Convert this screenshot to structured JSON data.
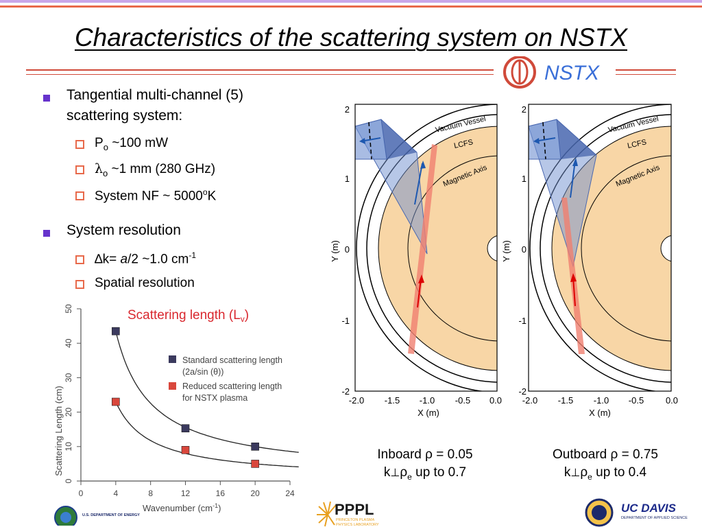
{
  "slide": {
    "title": "Characteristics of the scattering system on NSTX",
    "logo_text": "NSTX"
  },
  "bullets": {
    "b1_line1": "Tangential multi-channel (5)",
    "b1_line2": "scattering system:",
    "b1_sub1_main": "P",
    "b1_sub1_sub": "o",
    "b1_sub1_rest": " ~100 mW",
    "b1_sub2_main": "λ",
    "b1_sub2_sub": "o",
    "b1_sub2_rest": " ~1 mm (280 GHz)",
    "b1_sub3_main": "System NF ~ 5000",
    "b1_sub3_sup": "o",
    "b1_sub3_rest": "K",
    "b2": "System resolution",
    "b2_sub1_a": "∆k= ",
    "b2_sub1_b": "a",
    "b2_sub1_c": "/2 ~1.0 cm",
    "b2_sub1_sup": "-1",
    "b2_sub2": "Spatial resolution"
  },
  "chart_data": {
    "type": "scatter",
    "title": "Scattering length (L",
    "title_sub": "v",
    "title_end": ")",
    "xlabel": "Wavenumber (cm",
    "xlabel_sup": "-1",
    "xlabel_end": ")",
    "ylabel": "Scattering Length (cm)",
    "xlim": [
      0,
      24
    ],
    "ylim": [
      0,
      50
    ],
    "xticks": [
      "0",
      "4",
      "8",
      "12",
      "16",
      "20",
      "24"
    ],
    "yticks": [
      "0",
      "10",
      "20",
      "30",
      "40",
      "50"
    ],
    "series": [
      {
        "name": "Standard scattering length",
        "name2": "(2a/sin (θ))",
        "color": "#3b3a5e",
        "x": [
          4,
          12,
          20
        ],
        "y": [
          43.5,
          15.3,
          10.0
        ]
      },
      {
        "name": "Reduced scattering length",
        "name2": "for NSTX plasma",
        "color": "#d9473c",
        "x": [
          4,
          12,
          20
        ],
        "y": [
          23.0,
          9.0,
          5.0
        ]
      }
    ]
  },
  "panels": {
    "ylabel": "Y (m)",
    "xlabel": "X (m)",
    "xticks": [
      "-2.0",
      "-1.5",
      "-1.0",
      "-0.5",
      "0.0"
    ],
    "yticks": [
      "2",
      "1",
      "0",
      "-1",
      "-2"
    ],
    "label_vessel": "Vacuum Vessel",
    "label_lcfs": "LCFS",
    "label_axis": "Magnetic Axis"
  },
  "captions": {
    "inboard_line1": "Inboard  ρ = 0.05",
    "inboard_k": "k",
    "inboard_perp": "⊥",
    "inboard_rho": "ρ",
    "inboard_e": "e",
    "inboard_rest": " up to 0.7",
    "outboard_line1": "Outboard  ρ = 0.75",
    "outboard_k": "k",
    "outboard_perp": "⊥",
    "outboard_rho": "ρ",
    "outboard_e": "e",
    "outboard_rest": " up to 0.4"
  },
  "footer": {
    "doe_text": "U.S. DEPARTMENT OF ENERGY",
    "pppl_text": "PPPL",
    "pppl_sub1": "PRINCETON PLASMA",
    "pppl_sub2": "PHYSICS LABORATORY",
    "ucd_text": "UC DAVIS",
    "ucd_sub": "DEPARTMENT OF APPLIED SCIENCE"
  },
  "colors": {
    "title_text": "#000000",
    "accent_red": "#d04a3a",
    "bullet_purple": "#6633cc",
    "logo_blue": "#3a6fd8",
    "plasma_fill": "#f8d6a6",
    "beam_blue": "#6f8fd0",
    "beam_red": "#f08070"
  }
}
